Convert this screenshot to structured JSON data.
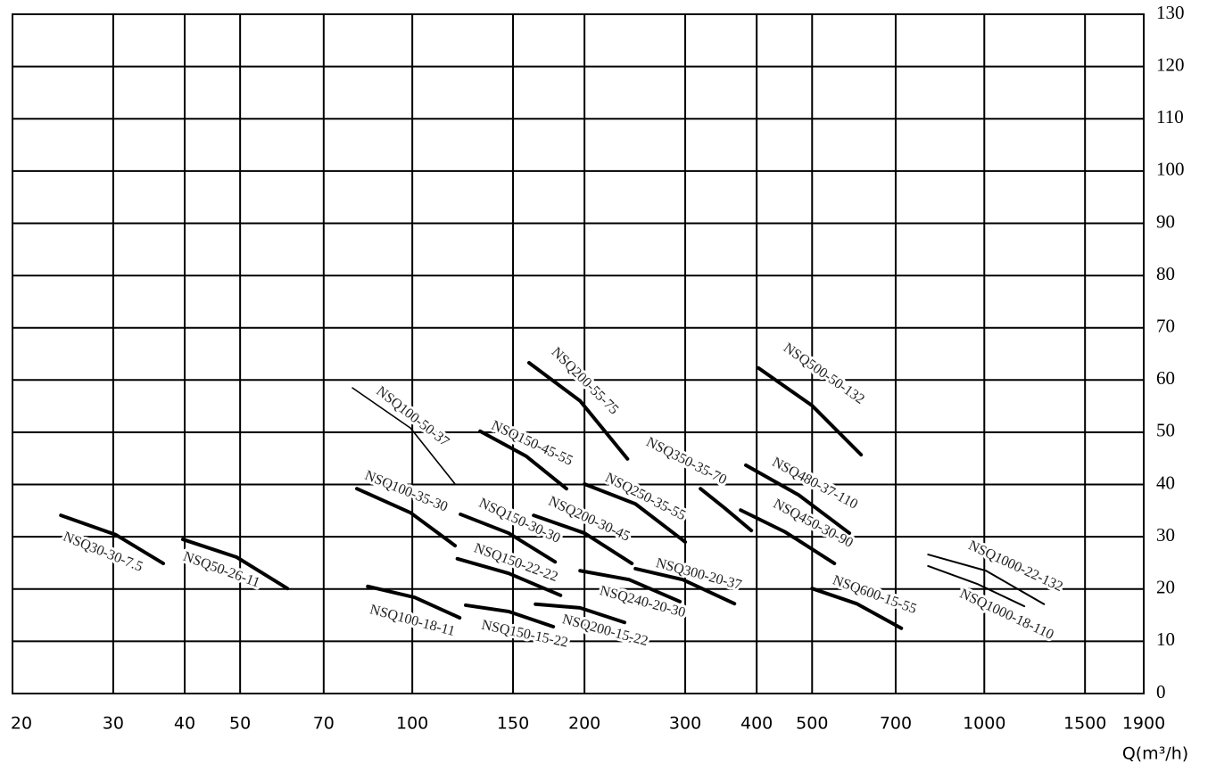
{
  "chart_data": {
    "type": "line",
    "x_label": "Q(m³/h)",
    "xscale": "log",
    "xlim": [
      20,
      1900
    ],
    "xticks": [
      20,
      30,
      40,
      50,
      70,
      100,
      150,
      200,
      300,
      400,
      500,
      700,
      1000,
      1500,
      1900
    ],
    "ylim": [
      0,
      130
    ],
    "yticks": [
      0,
      10,
      20,
      30,
      40,
      50,
      60,
      70,
      80,
      90,
      100,
      110,
      120,
      130
    ],
    "grid": true,
    "color": "#000000",
    "series": [
      {
        "name": "NSQ30-30-7.5",
        "x": [
          24.3,
          30.3,
          36.7
        ],
        "values": [
          34.1,
          30.4,
          24.9
        ]
      },
      {
        "name": "NSQ50-26-11",
        "x": [
          39.7,
          49.3,
          60.5
        ],
        "values": [
          29.5,
          26.1,
          20.1
        ]
      },
      {
        "name": "NSQ100-18-11",
        "x": [
          83.6,
          101,
          121
        ],
        "values": [
          20.5,
          18.4,
          14.5
        ]
      },
      {
        "name": "NSQ100-35-30",
        "x": [
          80,
          99.3,
          118.8
        ],
        "values": [
          39.2,
          34.6,
          28.3
        ]
      },
      {
        "name": "NSQ100-50-37",
        "x": [
          78.6,
          99.3,
          118.8
        ],
        "values": [
          58.5,
          50.8,
          40.1
        ]
      },
      {
        "name": "NSQ150-45-55",
        "x": [
          131.4,
          158.3,
          186
        ],
        "values": [
          50.2,
          45.4,
          39.2
        ]
      },
      {
        "name": "NSQ150-30-30",
        "x": [
          121.4,
          147.4,
          177.7
        ],
        "values": [
          34.3,
          30.7,
          25.2
        ]
      },
      {
        "name": "NSQ150-22-22",
        "x": [
          119.9,
          147.4,
          181.6
        ],
        "values": [
          25.8,
          23.0,
          18.8
        ]
      },
      {
        "name": "NSQ150-15-22",
        "x": [
          124,
          147.4,
          176.4
        ],
        "values": [
          16.9,
          15.7,
          12.8
        ]
      },
      {
        "name": "NSQ200-55-75",
        "x": [
          160,
          196.5,
          237.8
        ],
        "values": [
          63.3,
          56.0,
          44.9
        ]
      },
      {
        "name": "NSQ200-30-45",
        "x": [
          163,
          200,
          242
        ],
        "values": [
          34.1,
          30.7,
          24.9
        ]
      },
      {
        "name": "NSQ200-15-22",
        "x": [
          164.2,
          196.5,
          235
        ],
        "values": [
          17.1,
          16.4,
          13.6
        ]
      },
      {
        "name": "NSQ250-35-55",
        "x": [
          200,
          245.5,
          300
        ],
        "values": [
          40.1,
          36.3,
          29.0
        ]
      },
      {
        "name": "NSQ240-20-30",
        "x": [
          196.5,
          239.3,
          293.6
        ],
        "values": [
          23.5,
          21.8,
          17.6
        ]
      },
      {
        "name": "NSQ300-20-37",
        "x": [
          245.5,
          297,
          365.8
        ],
        "values": [
          23.9,
          21.8,
          17.2
        ]
      },
      {
        "name": "NSQ350-35-70",
        "x": [
          319,
          351.6,
          391.5
        ],
        "values": [
          39.2,
          35.5,
          31.2
        ]
      },
      {
        "name": "NSQ500-50-132",
        "x": [
          403,
          500,
          609
        ],
        "values": [
          62.3,
          55.1,
          45.7
        ]
      },
      {
        "name": "NSQ480-37-110",
        "x": [
          383,
          473.6,
          581
        ],
        "values": [
          43.7,
          38.0,
          30.7
        ]
      },
      {
        "name": "NSQ450-30-90",
        "x": [
          375,
          449,
          547
        ],
        "values": [
          35.1,
          30.9,
          24.9
        ]
      },
      {
        "name": "NSQ600-15-55",
        "x": [
          500,
          598,
          716
        ],
        "values": [
          20.1,
          17.2,
          12.5
        ]
      },
      {
        "name": "NSQ1000-22-132",
        "x": [
          797.6,
          1007,
          1272
        ],
        "values": [
          26.6,
          23.5,
          17.1
        ]
      },
      {
        "name": "NSQ1000-18-110",
        "x": [
          797.6,
          971,
          1175
        ],
        "values": [
          24.4,
          21.0,
          16.7
        ]
      }
    ]
  }
}
